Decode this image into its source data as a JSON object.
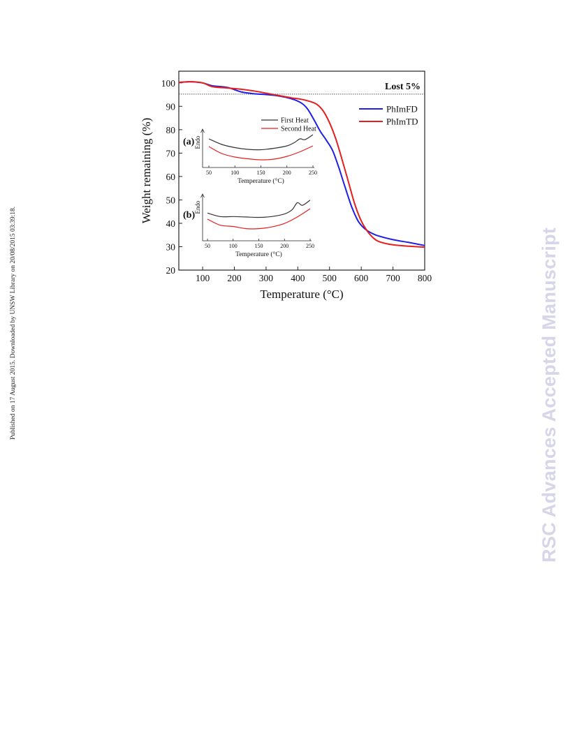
{
  "page": {
    "side_note": "Published on 17 August 2015. Downloaded by UNSW Library on 20/08/2015 03:39:18.",
    "watermark": "RSC Advances Accepted Manuscript"
  },
  "chart_data": [
    {
      "type": "line",
      "xlabel": "Temperature (°C)",
      "ylabel": "Weight remaining (%)",
      "xlim": [
        25,
        800
      ],
      "ylim": [
        20,
        105
      ],
      "xticks": [
        100,
        200,
        300,
        400,
        500,
        600,
        700,
        800
      ],
      "yticks": [
        20,
        30,
        40,
        50,
        60,
        70,
        80,
        90,
        100
      ],
      "legend_position": "top-right",
      "reference_line": {
        "y": 95.2,
        "label": "Lost 5%",
        "style": "dotted"
      },
      "series": [
        {
          "name": "PhImFD",
          "color": "#1f1fe6",
          "x": [
            25,
            60,
            100,
            130,
            180,
            220,
            260,
            300,
            340,
            380,
            410,
            430,
            450,
            470,
            490,
            510,
            530,
            550,
            570,
            590,
            610,
            630,
            650,
            700,
            750,
            800
          ],
          "y": [
            100.2,
            100.5,
            100.0,
            98.8,
            98.0,
            96.2,
            95.4,
            95.0,
            94.4,
            93.2,
            91.5,
            89.0,
            84.5,
            79.5,
            75.5,
            71.0,
            63.5,
            55.0,
            47.0,
            41.0,
            37.8,
            36.0,
            34.8,
            33.0,
            31.8,
            30.5
          ]
        },
        {
          "name": "PhImTD",
          "color": "#e61e1e",
          "x": [
            25,
            60,
            100,
            130,
            180,
            220,
            260,
            300,
            340,
            380,
            410,
            440,
            460,
            480,
            500,
            520,
            540,
            560,
            580,
            600,
            620,
            640,
            660,
            700,
            750,
            800
          ],
          "y": [
            100.2,
            100.5,
            100.0,
            98.4,
            97.8,
            97.3,
            96.6,
            95.6,
            94.6,
            93.6,
            93.0,
            92.0,
            90.8,
            88.0,
            83.0,
            76.0,
            67.0,
            57.5,
            48.0,
            41.0,
            36.5,
            33.5,
            32.0,
            30.8,
            30.2,
            29.8
          ]
        }
      ]
    },
    {
      "type": "line",
      "panel_label": "(a)",
      "xlabel": "Temperature (°C)",
      "ylabel": "Endo",
      "xlim": [
        50,
        250
      ],
      "xticks": [
        50,
        100,
        150,
        200,
        250
      ],
      "legend_position": "top",
      "series": [
        {
          "name": "First Heat",
          "color": "#333333",
          "x": [
            50,
            75,
            100,
            125,
            150,
            175,
            200,
            215,
            225,
            235,
            250
          ],
          "y": [
            0.82,
            0.66,
            0.57,
            0.52,
            0.51,
            0.55,
            0.62,
            0.72,
            0.82,
            0.8,
            0.94
          ]
        },
        {
          "name": "Second Heat",
          "color": "#e61e1e",
          "x": [
            50,
            75,
            100,
            125,
            150,
            175,
            200,
            225,
            250
          ],
          "y": [
            0.6,
            0.4,
            0.3,
            0.25,
            0.22,
            0.24,
            0.32,
            0.45,
            0.62
          ]
        }
      ]
    },
    {
      "type": "line",
      "panel_label": "(b)",
      "xlabel": "Temperature (°C)",
      "ylabel": "Endo",
      "xlim": [
        50,
        250
      ],
      "xticks": [
        50,
        100,
        150,
        200,
        250
      ],
      "series": [
        {
          "name": "First Heat",
          "color": "#333333",
          "x": [
            50,
            75,
            100,
            125,
            150,
            175,
            200,
            215,
            225,
            235,
            250
          ],
          "y": [
            0.64,
            0.56,
            0.56,
            0.55,
            0.54,
            0.56,
            0.62,
            0.72,
            0.88,
            0.82,
            0.94
          ]
        },
        {
          "name": "Second Heat",
          "color": "#e61e1e",
          "x": [
            50,
            75,
            100,
            125,
            150,
            175,
            200,
            225,
            250
          ],
          "y": [
            0.5,
            0.36,
            0.33,
            0.28,
            0.28,
            0.32,
            0.4,
            0.55,
            0.74
          ]
        }
      ]
    }
  ]
}
